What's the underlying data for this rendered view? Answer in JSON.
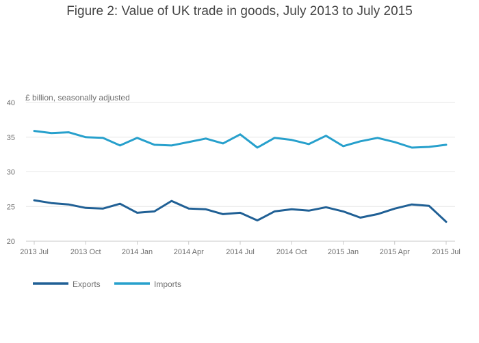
{
  "chart_data": {
    "type": "line",
    "title": "Figure 2: Value of UK trade in goods, July 2013 to July 2015",
    "ylabel": "£ billion, seasonally adjusted",
    "xlabel": "",
    "ylim": [
      20,
      40
    ],
    "yticks": [
      20,
      25,
      30,
      35,
      40
    ],
    "grid": true,
    "legend": "bottom-left",
    "x": [
      "2013 Jul",
      "2013 Aug",
      "2013 Sep",
      "2013 Oct",
      "2013 Nov",
      "2013 Dec",
      "2014 Jan",
      "2014 Feb",
      "2014 Mar",
      "2014 Apr",
      "2014 May",
      "2014 Jun",
      "2014 Jul",
      "2014 Aug",
      "2014 Sep",
      "2014 Oct",
      "2014 Nov",
      "2014 Dec",
      "2015 Jan",
      "2015 Feb",
      "2015 Mar",
      "2015 Apr",
      "2015 May",
      "2015 Jun",
      "2015 Jul"
    ],
    "xticks": [
      "2013 Jul",
      "2013 Oct",
      "2014 Jan",
      "2014 Apr",
      "2014 Jul",
      "2014 Oct",
      "2015 Jan",
      "2015 Apr",
      "2015 Jul"
    ],
    "series": [
      {
        "name": "Exports",
        "color": "#206095",
        "values": [
          25.9,
          25.5,
          25.3,
          24.8,
          24.7,
          25.4,
          24.1,
          24.3,
          25.8,
          24.7,
          24.6,
          23.9,
          24.1,
          23.0,
          24.3,
          24.6,
          24.4,
          24.9,
          24.3,
          23.4,
          23.9,
          24.7,
          25.3,
          25.1,
          22.8
        ]
      },
      {
        "name": "Imports",
        "color": "#27a0cc",
        "values": [
          35.9,
          35.6,
          35.7,
          35.0,
          34.9,
          33.8,
          34.9,
          33.9,
          33.8,
          34.3,
          34.8,
          34.1,
          35.4,
          33.5,
          34.9,
          34.6,
          34.0,
          35.2,
          33.7,
          34.4,
          34.9,
          34.3,
          33.5,
          33.6,
          33.9
        ]
      }
    ]
  }
}
